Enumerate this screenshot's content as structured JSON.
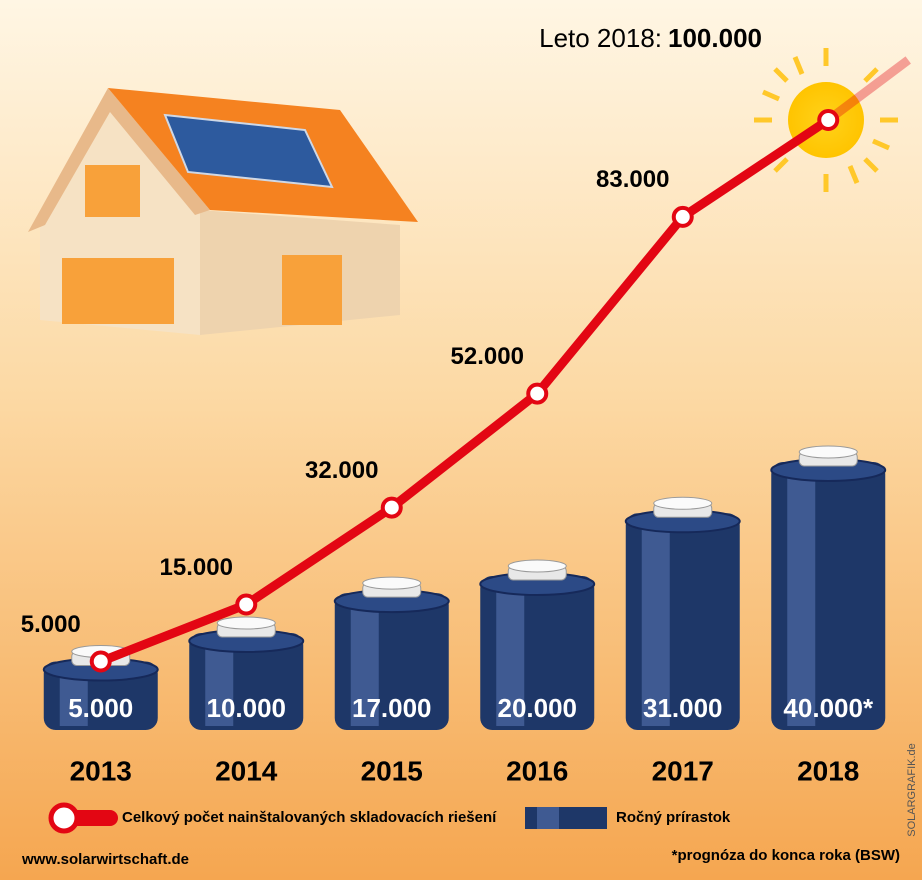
{
  "chart_data": {
    "type": "combo",
    "categories": [
      "2013",
      "2014",
      "2015",
      "2016",
      "2017",
      "2018"
    ],
    "series": [
      {
        "name": "Celkový počet nainštalovaných skladovacích riešení",
        "type": "line",
        "color": "#e30613",
        "values": [
          5000,
          15000,
          32000,
          52000,
          83000,
          100000
        ],
        "value_labels": [
          "5.000",
          "15.000",
          "32.000",
          "52.000",
          "83.000",
          "100.000"
        ]
      },
      {
        "name": "Ročný prírastok",
        "type": "bar",
        "color": "#1e3768",
        "values": [
          5000,
          10000,
          17000,
          20000,
          31000,
          40000
        ],
        "value_labels": [
          "5.000",
          "10.000",
          "17.000",
          "20.000",
          "31.000",
          "40.000*"
        ]
      }
    ],
    "annotation": "Leto 2018:",
    "footnote": "*prognóza do konca roka (BSW)",
    "source": "www.solarwirtschaft.de",
    "credit": "SOLARGRAFIK.de"
  }
}
